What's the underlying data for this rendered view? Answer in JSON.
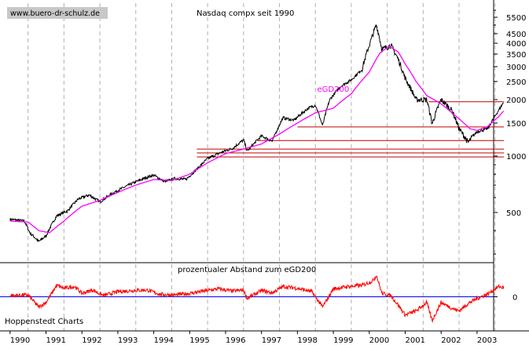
{
  "chart_data": [
    {
      "type": "line",
      "title": "Nasdaq compx seit 1990",
      "watermark": "www.buero-dr-schulz.de",
      "y_scale": "log",
      "ylim": [
        270,
        6800
      ],
      "y_ticks": [
        500,
        1000,
        1500,
        2000,
        2500,
        3000,
        3500,
        4000,
        4500,
        5500
      ],
      "grid": "vertical dashed yearly",
      "series": [
        {
          "name": "",
          "color": "#000000",
          "x": [
            1990.0,
            1990.4,
            1990.55,
            1990.8,
            1991.0,
            1991.3,
            1991.6,
            1991.9,
            1992.2,
            1992.5,
            1992.9,
            1993.3,
            1993.8,
            1994.0,
            1994.3,
            1994.6,
            1994.9,
            1995.2,
            1995.5,
            1995.9,
            1996.2,
            1996.5,
            1996.6,
            1997.0,
            1997.3,
            1997.6,
            1997.9,
            1998.3,
            1998.5,
            1998.7,
            1998.9,
            1999.2,
            1999.5,
            1999.8,
            2000.0,
            2000.2,
            2000.35,
            2000.6,
            2000.8,
            2001.0,
            2001.3,
            2001.6,
            2001.75,
            2002.0,
            2002.3,
            2002.5,
            2002.75,
            2003.0,
            2003.3,
            2003.6,
            2003.75
          ],
          "values": [
            460,
            450,
            390,
            350,
            375,
            480,
            510,
            590,
            620,
            570,
            640,
            700,
            770,
            790,
            730,
            760,
            750,
            850,
            970,
            1050,
            1100,
            1220,
            1060,
            1280,
            1200,
            1600,
            1550,
            1800,
            1870,
            1450,
            2000,
            2350,
            2550,
            2900,
            3900,
            5000,
            3700,
            3900,
            3300,
            2600,
            2000,
            2000,
            1480,
            2000,
            1750,
            1400,
            1180,
            1350,
            1400,
            1750,
            1950
          ]
        },
        {
          "name": "eGD200",
          "color": "#ff00ff",
          "x": [
            1990.0,
            1990.5,
            1990.8,
            1991.1,
            1991.5,
            1992.0,
            1992.5,
            1993.0,
            1993.5,
            1994.0,
            1994.5,
            1995.0,
            1995.5,
            1996.0,
            1996.5,
            1997.0,
            1997.5,
            1998.0,
            1998.5,
            1999.0,
            1999.5,
            2000.0,
            2000.3,
            2000.55,
            2000.8,
            2001.0,
            2001.3,
            2001.6,
            2002.0,
            2002.3,
            2002.6,
            2002.8,
            2003.0,
            2003.3,
            2003.6,
            2003.75
          ],
          "values": [
            450,
            445,
            400,
            390,
            450,
            540,
            580,
            640,
            700,
            750,
            740,
            800,
            920,
            1030,
            1090,
            1160,
            1310,
            1500,
            1700,
            1800,
            2150,
            2800,
            3550,
            3850,
            3600,
            3100,
            2500,
            2100,
            1900,
            1700,
            1520,
            1400,
            1370,
            1440,
            1620,
            1750
          ]
        }
      ],
      "support_lines": [
        {
          "value": 1950,
          "x_from": 2001.65,
          "x_to": 2003.75
        },
        {
          "value": 1430,
          "x_from": 1998.0,
          "x_to": 2003.75
        },
        {
          "value": 1210,
          "x_from": 1996.9,
          "x_to": 2003.75
        },
        {
          "value": 1090,
          "x_from": 1995.2,
          "x_to": 2003.75
        },
        {
          "value": 1040,
          "x_from": 1995.2,
          "x_to": 2003.75
        },
        {
          "value": 990,
          "x_from": 1995.2,
          "x_to": 2003.75
        }
      ],
      "annotations": [
        {
          "text": "eGD200",
          "x": 1998.55,
          "y": 2200
        }
      ]
    },
    {
      "type": "line",
      "title": "prozentualer Abstand zum eGD200",
      "footer": "Hoppenstedt Charts",
      "ylim": [
        -60,
        60
      ],
      "y_ticks": [
        0
      ],
      "zero_line_color": "#0000ff",
      "series": [
        {
          "name": "",
          "color": "#ff0000",
          "x": [
            1990.0,
            1990.5,
            1990.8,
            1991.0,
            1991.3,
            1991.5,
            1991.8,
            1992.0,
            1992.3,
            1992.6,
            1993.0,
            1993.4,
            1993.8,
            1994.2,
            1994.6,
            1995.0,
            1995.4,
            1995.8,
            1996.2,
            1996.5,
            1996.6,
            1997.0,
            1997.3,
            1997.6,
            1998.0,
            1998.4,
            1998.7,
            1999.0,
            1999.4,
            1999.8,
            2000.1,
            2000.2,
            2000.35,
            2000.6,
            2000.8,
            2001.0,
            2001.3,
            2001.6,
            2001.75,
            2002.0,
            2002.3,
            2002.5,
            2002.75,
            2003.0,
            2003.3,
            2003.6,
            2003.75
          ],
          "values": [
            2,
            3,
            -18,
            -10,
            20,
            15,
            18,
            6,
            12,
            2,
            9,
            11,
            12,
            4,
            3,
            6,
            10,
            14,
            10,
            12,
            -3,
            11,
            7,
            18,
            15,
            9,
            -18,
            14,
            18,
            20,
            28,
            38,
            6,
            2,
            -14,
            -32,
            -25,
            -10,
            -42,
            -10,
            -20,
            -25,
            -12,
            -3,
            5,
            18,
            16
          ]
        }
      ]
    }
  ],
  "x_axis": {
    "tick_labels": [
      "1990",
      "1991",
      "1992",
      "1993",
      "1994",
      "1995",
      "1996",
      "1997",
      "1998",
      "1999",
      "2000",
      "2001",
      "2002",
      "2003"
    ]
  }
}
